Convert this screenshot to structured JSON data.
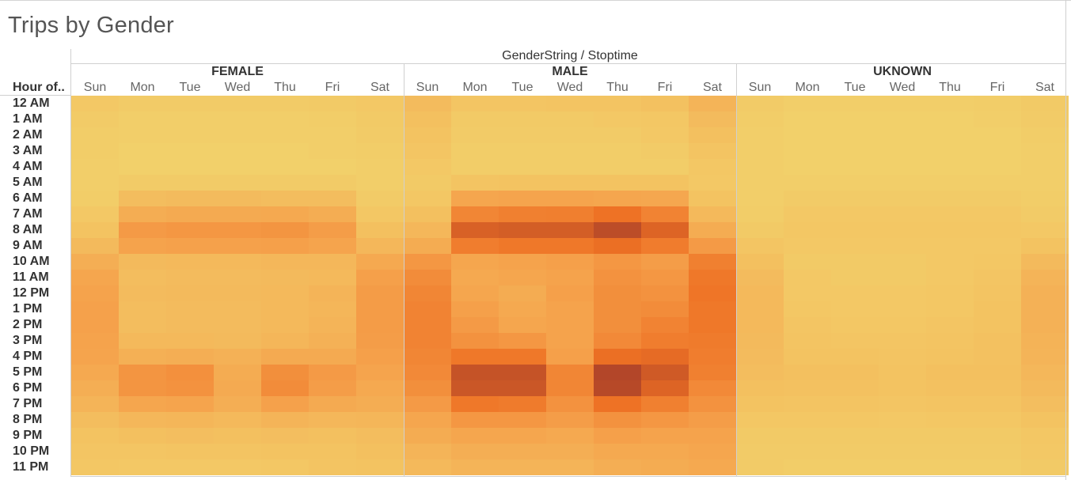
{
  "title": "Trips by Gender",
  "chart_data": {
    "type": "heatmap",
    "column_axis_title": "GenderString / Stoptime",
    "row_axis_title": "Hour of..",
    "groups": [
      "FEMALE",
      "MALE",
      "UKNOWN"
    ],
    "days": [
      "Sun",
      "Mon",
      "Tue",
      "Wed",
      "Thu",
      "Fri",
      "Sat"
    ],
    "hours": [
      "12 AM",
      "1 AM",
      "2 AM",
      "3 AM",
      "4 AM",
      "5 AM",
      "6 AM",
      "7 AM",
      "8 AM",
      "9 AM",
      "10 AM",
      "11 AM",
      "12 PM",
      "1 PM",
      "2 PM",
      "3 PM",
      "4 PM",
      "5 PM",
      "6 PM",
      "7 PM",
      "8 PM",
      "9 PM",
      "10 PM",
      "11 PM"
    ],
    "color_scale": [
      "#f2d16b",
      "#f5a14b",
      "#ee7124",
      "#a0382a"
    ],
    "values": {
      "FEMALE": [
        [
          0.06,
          0.04,
          0.04,
          0.04,
          0.04,
          0.05,
          0.06
        ],
        [
          0.04,
          0.02,
          0.02,
          0.02,
          0.02,
          0.03,
          0.05
        ],
        [
          0.03,
          0.02,
          0.02,
          0.02,
          0.02,
          0.02,
          0.04
        ],
        [
          0.03,
          0.01,
          0.01,
          0.01,
          0.01,
          0.02,
          0.03
        ],
        [
          0.02,
          0.01,
          0.01,
          0.01,
          0.01,
          0.01,
          0.02
        ],
        [
          0.02,
          0.04,
          0.04,
          0.04,
          0.04,
          0.04,
          0.02
        ],
        [
          0.03,
          0.14,
          0.15,
          0.15,
          0.14,
          0.14,
          0.04
        ],
        [
          0.06,
          0.25,
          0.27,
          0.27,
          0.28,
          0.25,
          0.07
        ],
        [
          0.1,
          0.38,
          0.4,
          0.4,
          0.42,
          0.36,
          0.12
        ],
        [
          0.16,
          0.32,
          0.33,
          0.33,
          0.34,
          0.31,
          0.18
        ],
        [
          0.24,
          0.16,
          0.17,
          0.17,
          0.18,
          0.18,
          0.28
        ],
        [
          0.3,
          0.14,
          0.15,
          0.15,
          0.16,
          0.17,
          0.34
        ],
        [
          0.32,
          0.15,
          0.16,
          0.16,
          0.17,
          0.2,
          0.37
        ],
        [
          0.33,
          0.14,
          0.15,
          0.15,
          0.17,
          0.19,
          0.37
        ],
        [
          0.33,
          0.14,
          0.15,
          0.15,
          0.17,
          0.2,
          0.37
        ],
        [
          0.32,
          0.17,
          0.17,
          0.16,
          0.19,
          0.22,
          0.36
        ],
        [
          0.31,
          0.23,
          0.24,
          0.22,
          0.27,
          0.27,
          0.34
        ],
        [
          0.28,
          0.42,
          0.45,
          0.26,
          0.46,
          0.38,
          0.31
        ],
        [
          0.24,
          0.42,
          0.44,
          0.27,
          0.48,
          0.36,
          0.28
        ],
        [
          0.2,
          0.3,
          0.31,
          0.24,
          0.33,
          0.27,
          0.25
        ],
        [
          0.14,
          0.18,
          0.19,
          0.17,
          0.2,
          0.18,
          0.19
        ],
        [
          0.1,
          0.12,
          0.13,
          0.12,
          0.13,
          0.12,
          0.14
        ],
        [
          0.08,
          0.08,
          0.09,
          0.09,
          0.1,
          0.1,
          0.12
        ],
        [
          0.07,
          0.06,
          0.06,
          0.06,
          0.07,
          0.09,
          0.1
        ]
      ],
      "MALE": [
        [
          0.15,
          0.08,
          0.08,
          0.09,
          0.09,
          0.11,
          0.2
        ],
        [
          0.12,
          0.05,
          0.05,
          0.05,
          0.06,
          0.07,
          0.15
        ],
        [
          0.1,
          0.04,
          0.04,
          0.04,
          0.04,
          0.06,
          0.12
        ],
        [
          0.08,
          0.03,
          0.03,
          0.03,
          0.03,
          0.04,
          0.09
        ],
        [
          0.06,
          0.03,
          0.03,
          0.03,
          0.03,
          0.03,
          0.07
        ],
        [
          0.05,
          0.09,
          0.1,
          0.1,
          0.1,
          0.1,
          0.06
        ],
        [
          0.07,
          0.3,
          0.31,
          0.31,
          0.3,
          0.29,
          0.1
        ],
        [
          0.12,
          0.52,
          0.56,
          0.57,
          0.66,
          0.54,
          0.17
        ],
        [
          0.18,
          0.76,
          0.78,
          0.78,
          0.88,
          0.74,
          0.26
        ],
        [
          0.26,
          0.58,
          0.62,
          0.62,
          0.68,
          0.59,
          0.38
        ],
        [
          0.4,
          0.3,
          0.32,
          0.34,
          0.4,
          0.36,
          0.56
        ],
        [
          0.48,
          0.28,
          0.3,
          0.32,
          0.44,
          0.4,
          0.62
        ],
        [
          0.52,
          0.3,
          0.26,
          0.34,
          0.46,
          0.44,
          0.64
        ],
        [
          0.54,
          0.34,
          0.28,
          0.32,
          0.46,
          0.48,
          0.62
        ],
        [
          0.54,
          0.38,
          0.3,
          0.32,
          0.46,
          0.54,
          0.62
        ],
        [
          0.54,
          0.44,
          0.4,
          0.32,
          0.5,
          0.58,
          0.6
        ],
        [
          0.52,
          0.62,
          0.62,
          0.34,
          0.68,
          0.7,
          0.58
        ],
        [
          0.5,
          0.84,
          0.84,
          0.52,
          0.92,
          0.8,
          0.56
        ],
        [
          0.46,
          0.82,
          0.82,
          0.52,
          0.9,
          0.74,
          0.5
        ],
        [
          0.38,
          0.62,
          0.6,
          0.44,
          0.66,
          0.56,
          0.44
        ],
        [
          0.3,
          0.4,
          0.4,
          0.36,
          0.44,
          0.4,
          0.36
        ],
        [
          0.26,
          0.3,
          0.3,
          0.28,
          0.34,
          0.32,
          0.32
        ],
        [
          0.2,
          0.24,
          0.24,
          0.24,
          0.28,
          0.28,
          0.3
        ],
        [
          0.17,
          0.2,
          0.2,
          0.2,
          0.24,
          0.26,
          0.28
        ]
      ],
      "UKNOWN": [
        [
          0.04,
          0.02,
          0.02,
          0.02,
          0.02,
          0.03,
          0.05
        ],
        [
          0.03,
          0.01,
          0.01,
          0.01,
          0.01,
          0.02,
          0.04
        ],
        [
          0.02,
          0.01,
          0.01,
          0.01,
          0.01,
          0.01,
          0.03
        ],
        [
          0.02,
          0.01,
          0.01,
          0.01,
          0.01,
          0.01,
          0.02
        ],
        [
          0.02,
          0.01,
          0.01,
          0.01,
          0.01,
          0.01,
          0.02
        ],
        [
          0.02,
          0.02,
          0.02,
          0.02,
          0.02,
          0.02,
          0.02
        ],
        [
          0.02,
          0.04,
          0.04,
          0.04,
          0.04,
          0.04,
          0.03
        ],
        [
          0.03,
          0.06,
          0.06,
          0.06,
          0.06,
          0.06,
          0.04
        ],
        [
          0.05,
          0.07,
          0.07,
          0.07,
          0.07,
          0.07,
          0.06
        ],
        [
          0.08,
          0.06,
          0.06,
          0.06,
          0.06,
          0.06,
          0.1
        ],
        [
          0.12,
          0.05,
          0.05,
          0.05,
          0.06,
          0.07,
          0.16
        ],
        [
          0.15,
          0.06,
          0.05,
          0.05,
          0.06,
          0.08,
          0.2
        ],
        [
          0.17,
          0.06,
          0.06,
          0.06,
          0.07,
          0.09,
          0.22
        ],
        [
          0.17,
          0.07,
          0.06,
          0.06,
          0.07,
          0.1,
          0.22
        ],
        [
          0.17,
          0.08,
          0.07,
          0.07,
          0.08,
          0.1,
          0.22
        ],
        [
          0.16,
          0.09,
          0.08,
          0.08,
          0.09,
          0.11,
          0.21
        ],
        [
          0.15,
          0.1,
          0.1,
          0.09,
          0.1,
          0.11,
          0.2
        ],
        [
          0.14,
          0.12,
          0.12,
          0.1,
          0.12,
          0.12,
          0.18
        ],
        [
          0.12,
          0.11,
          0.11,
          0.1,
          0.11,
          0.11,
          0.16
        ],
        [
          0.1,
          0.09,
          0.09,
          0.08,
          0.09,
          0.09,
          0.13
        ],
        [
          0.07,
          0.07,
          0.07,
          0.06,
          0.07,
          0.07,
          0.1
        ],
        [
          0.05,
          0.05,
          0.05,
          0.05,
          0.05,
          0.05,
          0.07
        ],
        [
          0.04,
          0.04,
          0.04,
          0.04,
          0.04,
          0.04,
          0.06
        ],
        [
          0.04,
          0.03,
          0.03,
          0.03,
          0.03,
          0.03,
          0.05
        ]
      ]
    }
  }
}
